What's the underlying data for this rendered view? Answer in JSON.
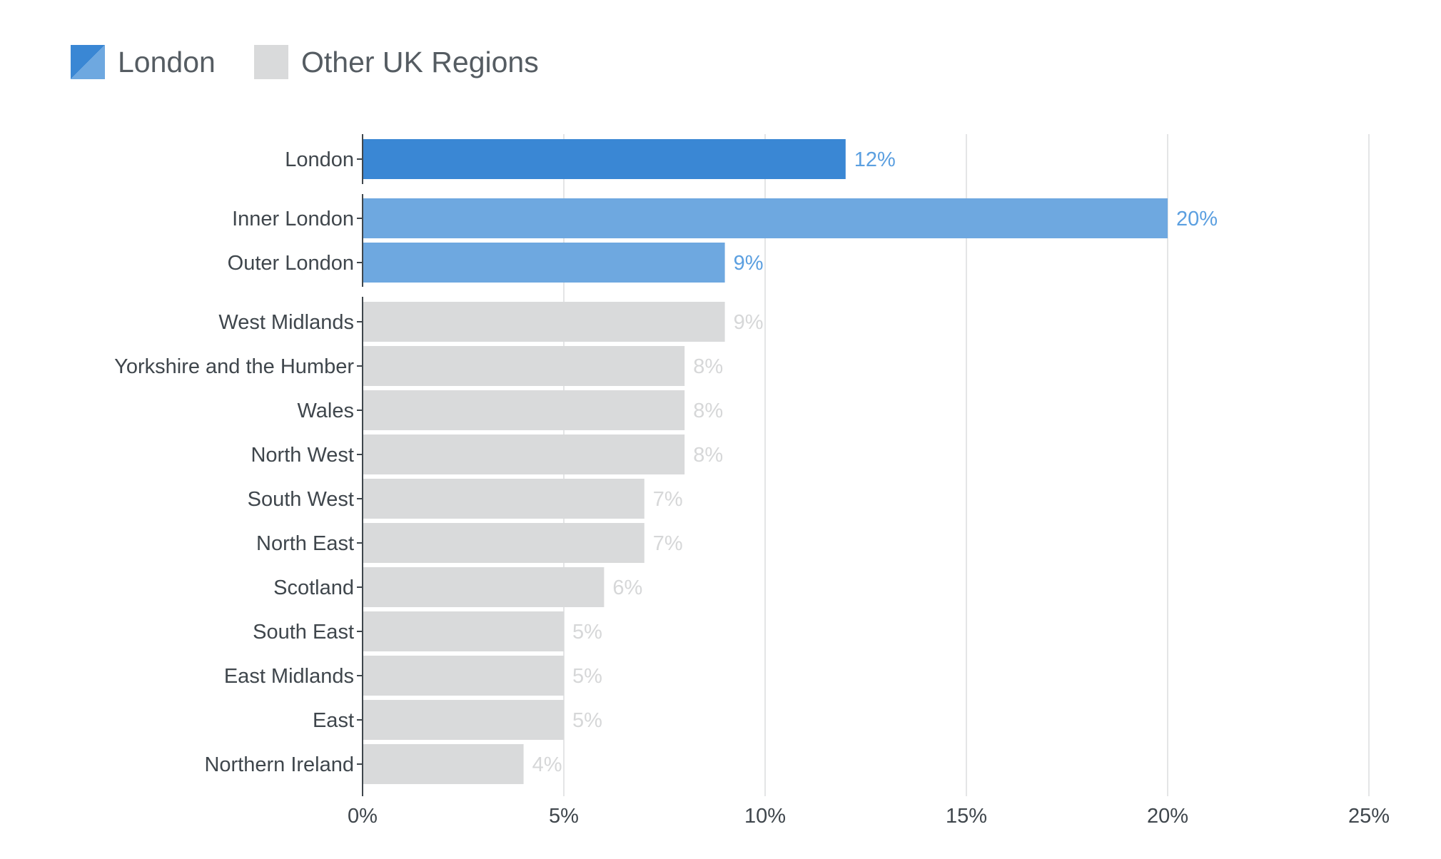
{
  "legend": {
    "items": [
      {
        "label": "London",
        "color": "#3a87d4",
        "color_alt": "#6ea8e0"
      },
      {
        "label": "Other UK Regions",
        "color": "#d9dadb"
      }
    ]
  },
  "colors": {
    "london_total": "#3a87d4",
    "london_sub": "#6ea8e0",
    "other": "#d9dadb",
    "london_value_label": "#5b9fe0",
    "other_value_label": "#d6d7d8",
    "grid": "#e4e5e6",
    "axis": "#3f464c"
  },
  "chart_data": {
    "type": "bar",
    "orientation": "horizontal",
    "title": "",
    "xlabel": "",
    "ylabel": "",
    "xlim": [
      0,
      25
    ],
    "x_ticks": [
      0,
      5,
      10,
      15,
      20,
      25
    ],
    "x_tick_labels": [
      "0%",
      "5%",
      "10%",
      "15%",
      "20%",
      "25%"
    ],
    "grid": true,
    "legend_position": "top-left",
    "categories": [
      "London",
      "Inner London",
      "Outer London",
      "West Midlands",
      "Yorkshire and the Humber",
      "Wales",
      "North West",
      "South West",
      "North East",
      "Scotland",
      "South East",
      "East Midlands",
      "East",
      "Northern Ireland"
    ],
    "values": [
      12,
      20,
      9,
      9,
      8,
      8,
      8,
      7,
      7,
      6,
      5,
      5,
      5,
      4
    ],
    "value_labels": [
      "12%",
      "20%",
      "9%",
      "9%",
      "8%",
      "8%",
      "8%",
      "7%",
      "7%",
      "6%",
      "5%",
      "5%",
      "5%",
      "4%"
    ],
    "groups": [
      "london_total",
      "london_sub",
      "london_sub",
      "other",
      "other",
      "other",
      "other",
      "other",
      "other",
      "other",
      "other",
      "other",
      "other",
      "other"
    ]
  }
}
